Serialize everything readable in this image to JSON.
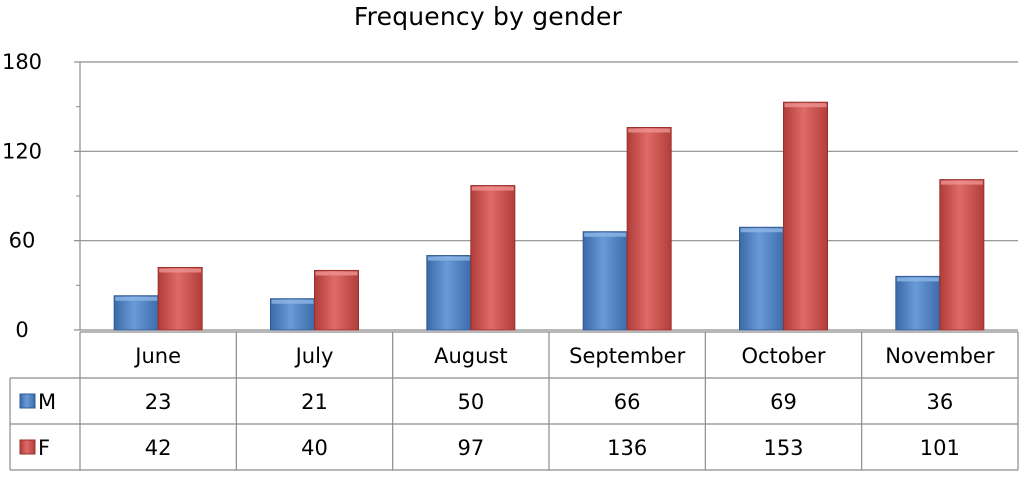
{
  "chart_data": {
    "type": "bar",
    "title": "Frequency by gender",
    "xlabel": "",
    "ylabel": "",
    "ylim": [
      0,
      180
    ],
    "yticks": [
      "0",
      "60",
      "120",
      "180"
    ],
    "grid": true,
    "legend": "data-table",
    "categories": [
      "June",
      "July",
      "August",
      "September",
      "October",
      "November"
    ],
    "series": [
      {
        "name": "M",
        "values": [
          23,
          21,
          50,
          66,
          69,
          36
        ],
        "color": "#4f81bd"
      },
      {
        "name": "F",
        "values": [
          42,
          40,
          97,
          136,
          153,
          101
        ],
        "color": "#c0504d"
      }
    ]
  }
}
